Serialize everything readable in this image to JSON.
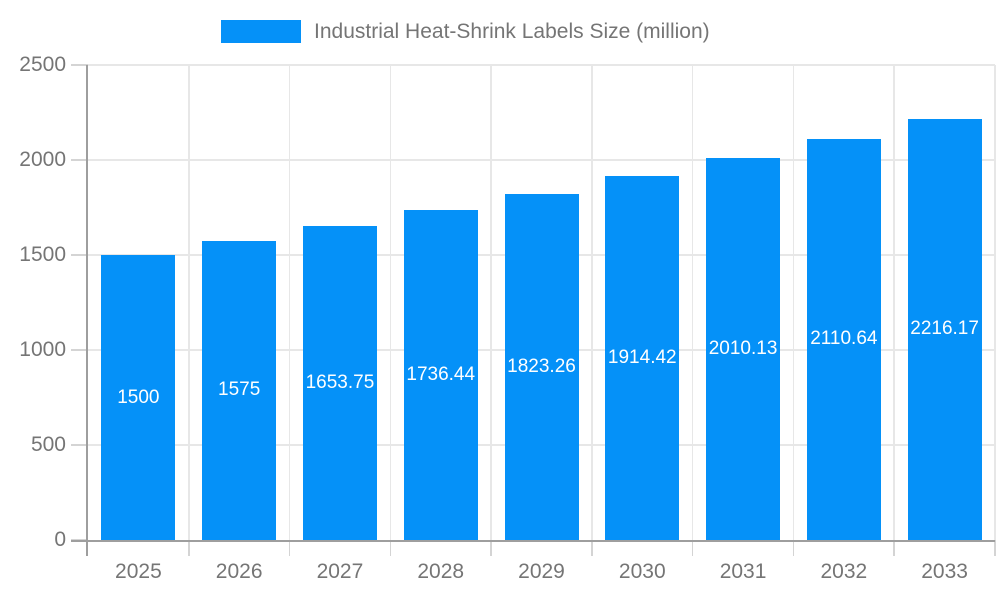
{
  "chart_data": {
    "type": "bar",
    "legend": "Industrial Heat-Shrink Labels Size (million)",
    "legend_position": "top",
    "categories": [
      "2025",
      "2026",
      "2027",
      "2028",
      "2029",
      "2030",
      "2031",
      "2032",
      "2033"
    ],
    "values": [
      1500,
      1575,
      1653.75,
      1736.44,
      1823.26,
      1914.42,
      2010.13,
      2110.64,
      2216.17
    ],
    "bar_labels": [
      "1500",
      "1575",
      "1653.75",
      "1736.44",
      "1823.26",
      "1914.42",
      "2010.13",
      "2110.64",
      "2216.17"
    ],
    "xlabel": "",
    "ylabel": "",
    "ylim": [
      0,
      2500
    ],
    "yticks": [
      0,
      500,
      1000,
      1500,
      2000,
      2500
    ],
    "grid": true,
    "colors": {
      "bar": "#0591f8",
      "axis_line": "#9e9e9e",
      "gridline": "#e7e7e7",
      "tick": "#d4d4d4",
      "axis_label": "#757575",
      "legend_text": "#757575",
      "bar_label": "#ffffff"
    }
  }
}
